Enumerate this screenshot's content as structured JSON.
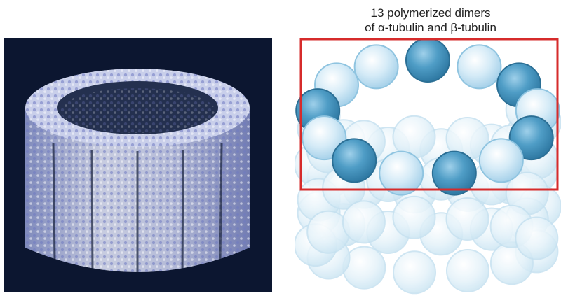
{
  "figure": {
    "caption_line_1": "13 polymerized dimers",
    "caption_line_2": "of α-tubulin and β-tubulin"
  },
  "colors": {
    "micrograph_background": "#0c1630",
    "ring_dark": "#3d8db8",
    "ring_light": "#bfe0f1",
    "lower_pale": "#ddeef8",
    "highlight_box": "#d62b2b"
  },
  "model": {
    "ring_pattern": [
      "dark",
      "light",
      "dark",
      "light",
      "dark",
      "light",
      "dark",
      "light",
      "dark",
      "light",
      "dark",
      "light",
      "light"
    ],
    "highlight": "selected-ring-box"
  }
}
